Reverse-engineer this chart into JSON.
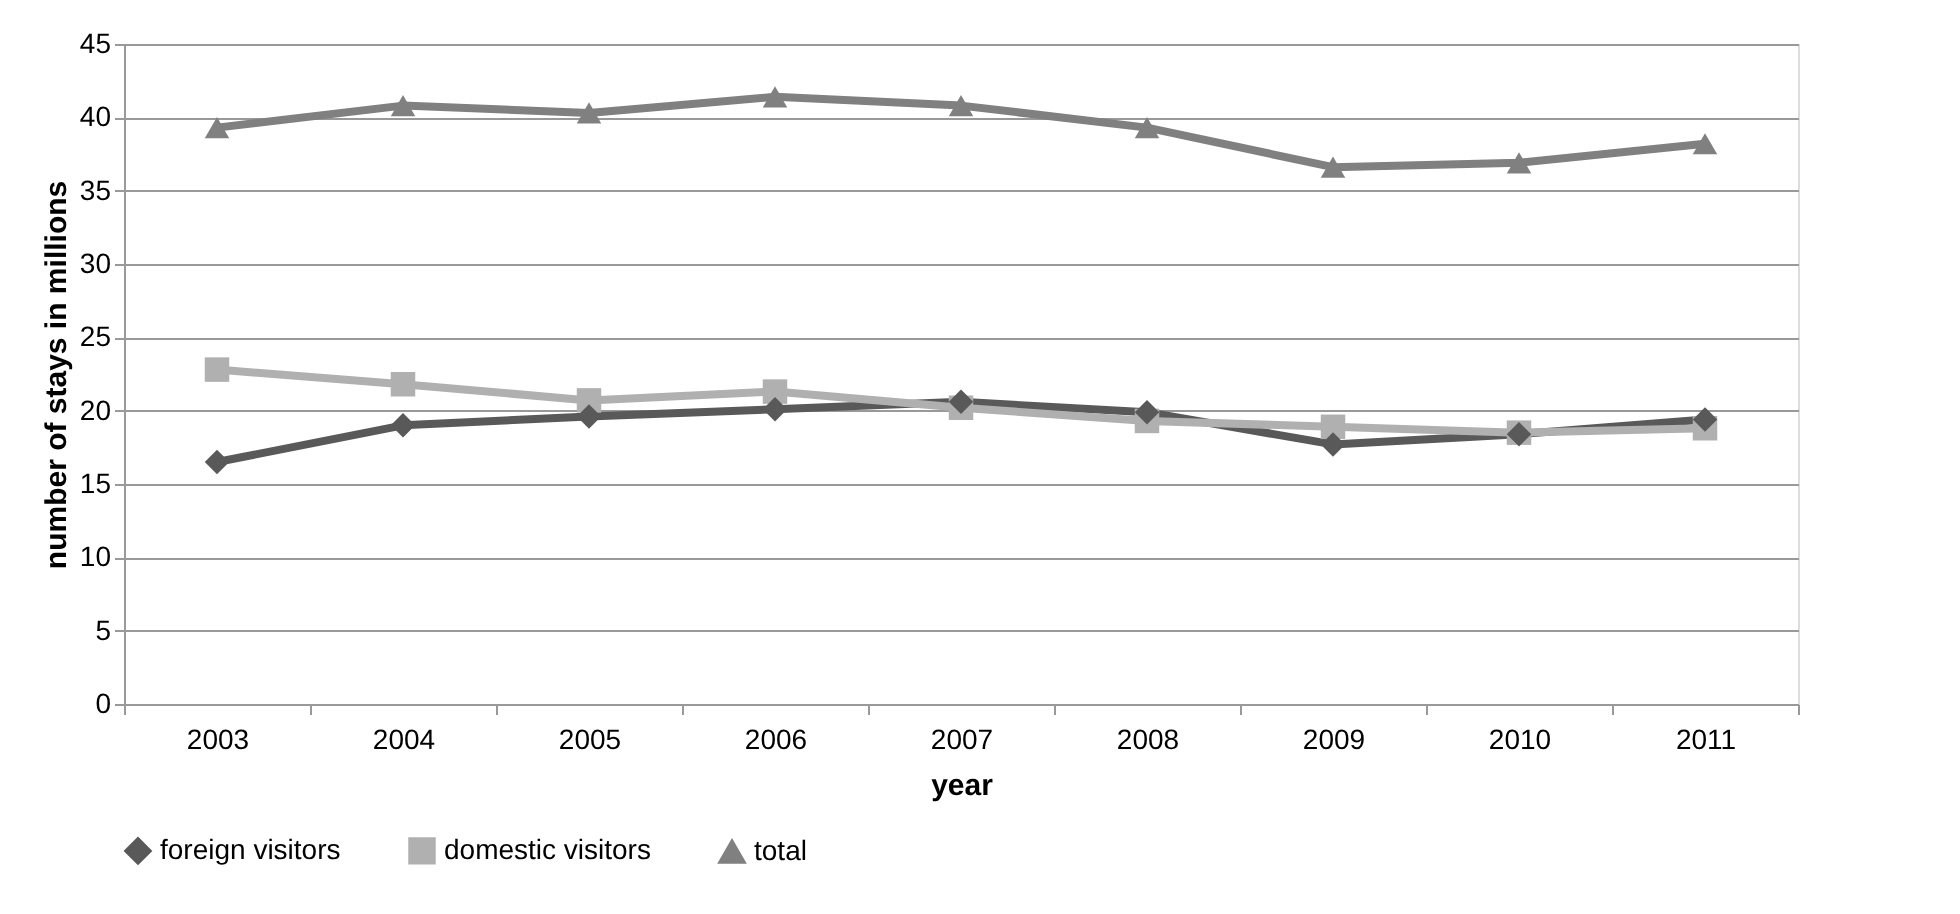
{
  "chart_data": {
    "type": "line",
    "xlabel": "year",
    "ylabel": "number of stays in millions",
    "categories": [
      "2003",
      "2004",
      "2005",
      "2006",
      "2007",
      "2008",
      "2009",
      "2010",
      "2011"
    ],
    "series": [
      {
        "name": "foreign visitors",
        "color": "#595959",
        "marker": "diamond",
        "values": [
          16.5,
          19.0,
          19.6,
          20.1,
          20.6,
          19.9,
          17.7,
          18.4,
          19.4
        ]
      },
      {
        "name": "domestic visitors",
        "color": "#b0b0b0",
        "marker": "square",
        "values": [
          22.8,
          21.8,
          20.7,
          21.3,
          20.2,
          19.3,
          18.9,
          18.5,
          18.8
        ]
      },
      {
        "name": "total",
        "color": "#808080",
        "marker": "triangle",
        "values": [
          39.3,
          40.8,
          40.3,
          41.4,
          40.8,
          39.3,
          36.6,
          36.9,
          38.2
        ]
      }
    ],
    "ylim": [
      0,
      45
    ],
    "yticks": [
      0,
      5,
      10,
      15,
      20,
      25,
      30,
      35,
      40,
      45
    ],
    "grid": "y",
    "legend": "bottom",
    "line_style": "solid"
  }
}
